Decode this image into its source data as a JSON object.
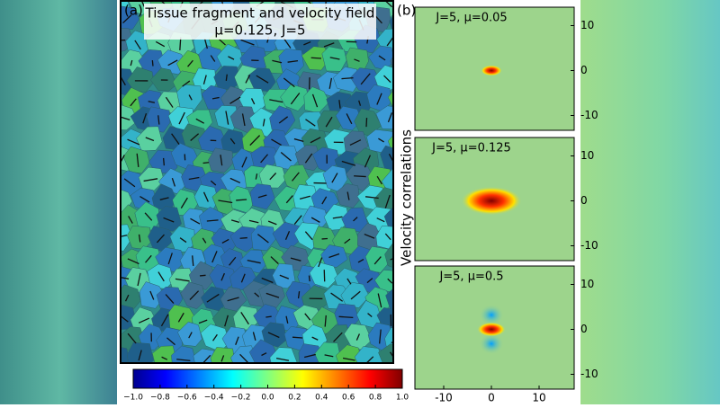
{
  "panel_a": {
    "label": "(a)",
    "title": "Tissue fragment and velocity field",
    "subtitle": "μ=0.125, J=5"
  },
  "colorbar": {
    "ticks": [
      "−1.0",
      "−0.8",
      "−0.6",
      "−0.4",
      "−0.2",
      "0.0",
      "0.2",
      "0.4",
      "0.6",
      "0.8",
      "1.0"
    ]
  },
  "panel_b": {
    "label": "(b)",
    "ylabel": "Velocity correlations",
    "plots": [
      {
        "title": "J=5, μ=0.05"
      },
      {
        "title": "J=5, μ=0.125"
      },
      {
        "title": "J=5, μ=0.5"
      }
    ],
    "yticks": [
      "10",
      "0",
      "-10"
    ],
    "xticks": [
      "-10",
      "0",
      "10"
    ]
  }
}
